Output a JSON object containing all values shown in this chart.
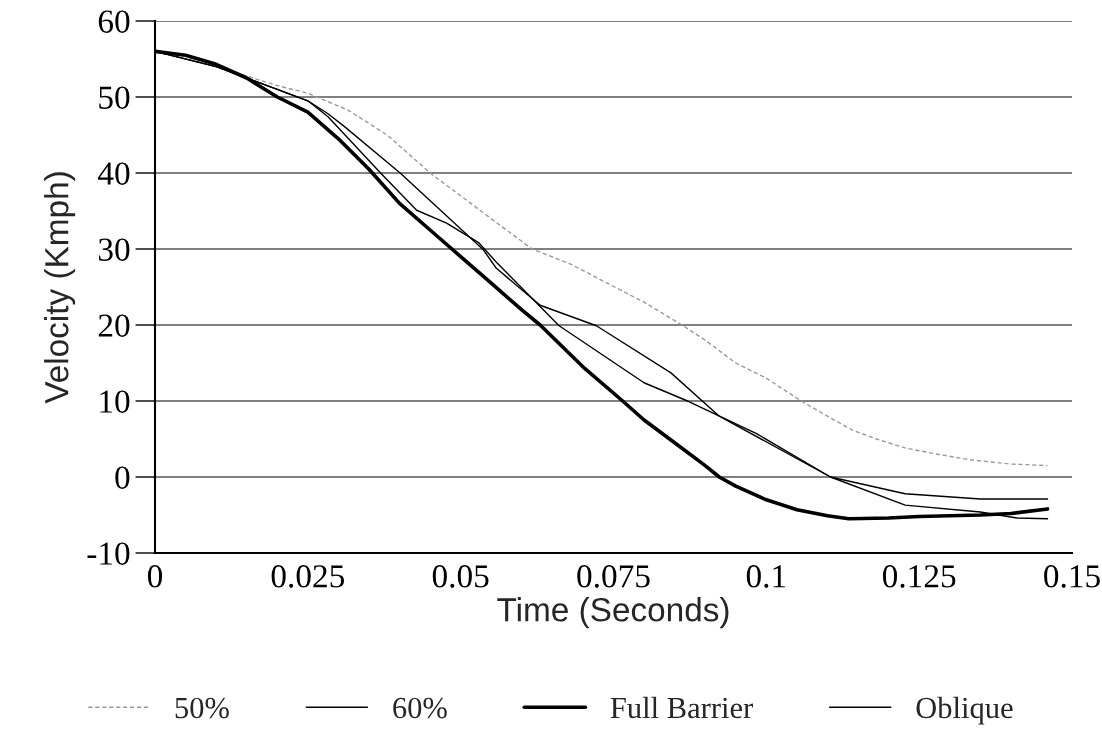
{
  "chart_data": {
    "type": "line",
    "xlabel": "Time (Seconds)",
    "ylabel": "Velocity (Kmph)",
    "xlim": [
      0,
      0.15
    ],
    "xticks": [
      0,
      0.025,
      0.05,
      0.075,
      0.1,
      0.125,
      0.15
    ],
    "ylim": [
      -10,
      60
    ],
    "yticks": [
      -10,
      0,
      10,
      20,
      30,
      40,
      50,
      60
    ],
    "grid": "y",
    "legend": "bottom",
    "marker": "none",
    "series": [
      {
        "name": "50%",
        "color": "#999999",
        "line_style": "dashed",
        "x": [
          0,
          0.01,
          0.02,
          0.025,
          0.0315,
          0.038,
          0.045,
          0.05,
          0.0558,
          0.0617,
          0.068,
          0.0752,
          0.08,
          0.0862,
          0.09,
          0.095,
          0.1,
          0.1057,
          0.11,
          0.114,
          0.118,
          0.1228,
          0.128,
          0.133,
          0.14,
          0.146
        ],
        "values": [
          56,
          54,
          51.5,
          50.5,
          48.3,
          45,
          40,
          37,
          33.5,
          30,
          28,
          25,
          23,
          20,
          18,
          15,
          13,
          10,
          8,
          6.2,
          5,
          3.8,
          3,
          2.3,
          1.7,
          1.5
        ]
      },
      {
        "name": "60%",
        "color": "#000000",
        "line_style": "solid",
        "x": [
          0,
          0.01,
          0.02,
          0.025,
          0.0283,
          0.031,
          0.0401,
          0.0537,
          0.0558,
          0.063,
          0.0722,
          0.0844,
          0.0923,
          0.1105,
          0.1227,
          0.135,
          0.146
        ],
        "values": [
          56,
          54,
          51,
          49.5,
          47.8,
          46.1,
          40,
          29.9,
          27.5,
          22.6,
          19.9,
          13.7,
          8,
          0,
          -2.2,
          -2.9,
          -2.9
        ]
      },
      {
        "name": "Full Barrier",
        "color": "#000000",
        "line_style": "solid",
        "x": [
          0,
          0.005,
          0.01,
          0.015,
          0.02,
          0.025,
          0.03,
          0.035,
          0.04,
          0.045,
          0.05,
          0.055,
          0.06,
          0.063,
          0.07,
          0.0765,
          0.08,
          0.085,
          0.09,
          0.0923,
          0.095,
          0.1,
          0.105,
          0.11,
          0.1135,
          0.12,
          0.125,
          0.13,
          0.135,
          0.14,
          0.146
        ],
        "values": [
          56,
          55.5,
          54.3,
          52.5,
          50,
          48,
          44.5,
          40.5,
          36,
          32.5,
          29,
          25.5,
          22,
          20,
          14.5,
          10,
          7.5,
          4.5,
          1.5,
          0,
          -1.2,
          -3,
          -4.3,
          -5.1,
          -5.5,
          -5.4,
          -5.2,
          -5.1,
          -5,
          -4.8,
          -4.2
        ]
      },
      {
        "name": "Oblique",
        "color": "#000000",
        "line_style": "solid",
        "x": [
          0,
          0.01,
          0.02,
          0.025,
          0.0283,
          0.0369,
          0.0428,
          0.0477,
          0.053,
          0.0558,
          0.0661,
          0.08,
          0.0874,
          0.0984,
          0.1105,
          0.1227,
          0.135,
          0.141,
          0.146
        ],
        "values": [
          56,
          54,
          51,
          49.5,
          47.4,
          40,
          35.1,
          33.4,
          30.8,
          28.3,
          19.9,
          12.4,
          9.9,
          5.7,
          0,
          -3.7,
          -4.6,
          -5.4,
          -5.5
        ]
      }
    ]
  }
}
